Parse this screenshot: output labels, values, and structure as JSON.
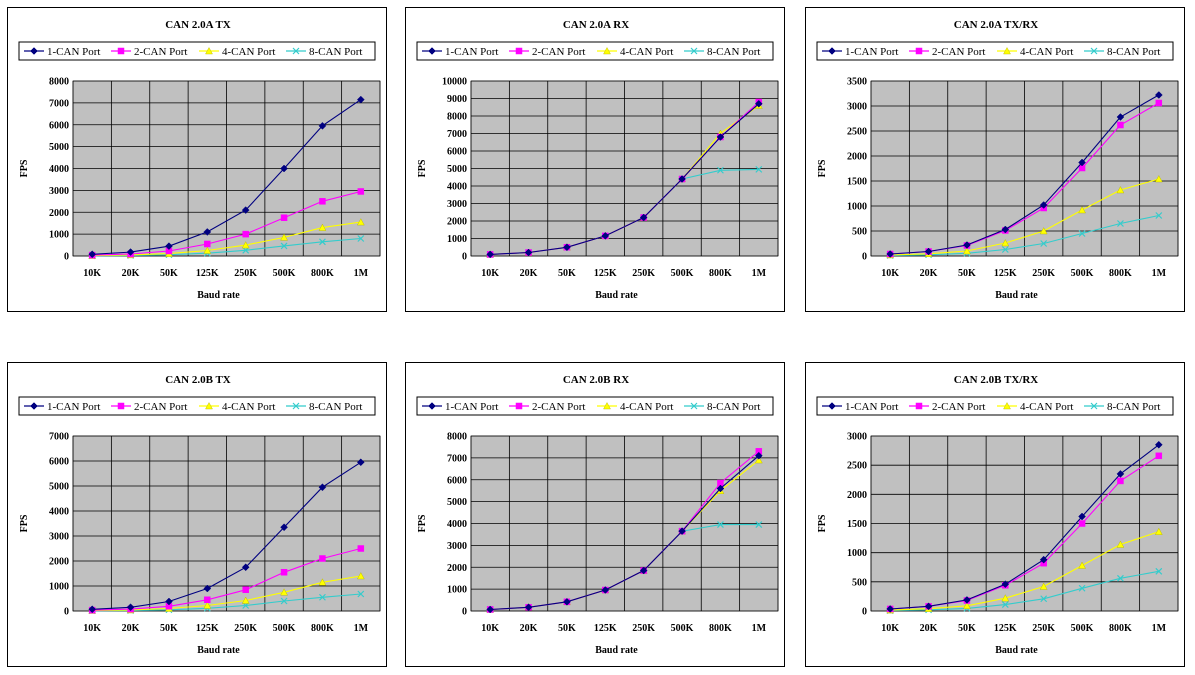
{
  "legend_labels": [
    "1-CAN Port",
    "2-CAN Port",
    "4-CAN Port",
    "8-CAN Port"
  ],
  "series_colors": [
    "#000080",
    "#ff00ff",
    "#ffff00",
    "#33cccc"
  ],
  "marker_shapes": [
    "diamond",
    "square",
    "triangle",
    "x"
  ],
  "chart_data": [
    {
      "type": "line",
      "title": "CAN 2.0A TX",
      "xlabel": "Baud rate",
      "ylabel": "FPS",
      "categories": [
        "10K",
        "20K",
        "50K",
        "125K",
        "250K",
        "500K",
        "800K",
        "1M"
      ],
      "ylim": [
        0,
        8000
      ],
      "yticks": [
        0,
        1000,
        2000,
        3000,
        4000,
        5000,
        6000,
        7000,
        8000
      ],
      "grid": true,
      "legend": "top",
      "series": [
        {
          "name": "1-CAN Port",
          "values": [
            80,
            180,
            450,
            1100,
            2100,
            4000,
            5950,
            7150
          ]
        },
        {
          "name": "2-CAN Port",
          "values": [
            40,
            90,
            230,
            550,
            1000,
            1750,
            2500,
            2950
          ]
        },
        {
          "name": "4-CAN Port",
          "values": [
            20,
            50,
            110,
            250,
            500,
            850,
            1300,
            1550
          ]
        },
        {
          "name": "8-CAN Port",
          "values": [
            10,
            25,
            60,
            130,
            260,
            460,
            650,
            800
          ]
        }
      ]
    },
    {
      "type": "line",
      "title": "CAN 2.0A RX",
      "xlabel": "Baud rate",
      "ylabel": "FPS",
      "categories": [
        "10K",
        "20K",
        "50K",
        "125K",
        "250K",
        "500K",
        "800K",
        "1M"
      ],
      "ylim": [
        0,
        10000
      ],
      "yticks": [
        0,
        1000,
        2000,
        3000,
        4000,
        5000,
        6000,
        7000,
        8000,
        9000,
        10000
      ],
      "grid": true,
      "legend": "top",
      "series": [
        {
          "name": "1-CAN Port",
          "values": [
            90,
            200,
            500,
            1150,
            2200,
            4400,
            6800,
            8700
          ]
        },
        {
          "name": "2-CAN Port",
          "values": [
            90,
            200,
            500,
            1150,
            2200,
            4400,
            6800,
            8800
          ]
        },
        {
          "name": "4-CAN Port",
          "values": [
            90,
            200,
            500,
            1150,
            2200,
            4400,
            7000,
            8600
          ]
        },
        {
          "name": "8-CAN Port",
          "values": [
            90,
            200,
            500,
            1150,
            2200,
            4400,
            4900,
            4950
          ]
        }
      ]
    },
    {
      "type": "line",
      "title": "CAN 2.0A TX/RX",
      "xlabel": "Baud rate",
      "ylabel": "FPS",
      "categories": [
        "10K",
        "20K",
        "50K",
        "125K",
        "250K",
        "500K",
        "800K",
        "1M"
      ],
      "ylim": [
        0,
        3500
      ],
      "yticks": [
        0,
        500,
        1000,
        1500,
        2000,
        2500,
        3000,
        3500
      ],
      "grid": true,
      "legend": "top",
      "series": [
        {
          "name": "1-CAN Port",
          "values": [
            40,
            90,
            220,
            530,
            1020,
            1870,
            2780,
            3220
          ]
        },
        {
          "name": "2-CAN Port",
          "values": [
            40,
            90,
            210,
            510,
            960,
            1760,
            2620,
            3060
          ]
        },
        {
          "name": "4-CAN Port",
          "values": [
            20,
            45,
            100,
            260,
            500,
            920,
            1320,
            1540
          ]
        },
        {
          "name": "8-CAN Port",
          "values": [
            10,
            25,
            55,
            130,
            250,
            450,
            650,
            810
          ]
        }
      ]
    },
    {
      "type": "line",
      "title": "CAN 2.0B TX",
      "xlabel": "Baud rate",
      "ylabel": "FPS",
      "categories": [
        "10K",
        "20K",
        "50K",
        "125K",
        "250K",
        "500K",
        "800K",
        "1M"
      ],
      "ylim": [
        0,
        7000
      ],
      "yticks": [
        0,
        1000,
        2000,
        3000,
        4000,
        5000,
        6000,
        7000
      ],
      "grid": true,
      "legend": "top",
      "series": [
        {
          "name": "1-CAN Port",
          "values": [
            70,
            150,
            380,
            900,
            1750,
            3350,
            4950,
            5950
          ]
        },
        {
          "name": "2-CAN Port",
          "values": [
            35,
            75,
            190,
            450,
            850,
            1550,
            2100,
            2500
          ]
        },
        {
          "name": "4-CAN Port",
          "values": [
            20,
            40,
            100,
            220,
            420,
            750,
            1150,
            1400
          ]
        },
        {
          "name": "8-CAN Port",
          "values": [
            10,
            20,
            50,
            110,
            220,
            400,
            550,
            680
          ]
        }
      ]
    },
    {
      "type": "line",
      "title": "CAN 2.0B RX",
      "xlabel": "Baud rate",
      "ylabel": "FPS",
      "categories": [
        "10K",
        "20K",
        "50K",
        "125K",
        "250K",
        "500K",
        "800K",
        "1M"
      ],
      "ylim": [
        0,
        8000
      ],
      "yticks": [
        0,
        1000,
        2000,
        3000,
        4000,
        5000,
        6000,
        7000,
        8000
      ],
      "grid": true,
      "legend": "top",
      "series": [
        {
          "name": "1-CAN Port",
          "values": [
            70,
            170,
            420,
            960,
            1850,
            3650,
            5600,
            7100
          ]
        },
        {
          "name": "2-CAN Port",
          "values": [
            70,
            170,
            420,
            960,
            1850,
            3650,
            5850,
            7300
          ]
        },
        {
          "name": "4-CAN Port",
          "values": [
            70,
            170,
            420,
            960,
            1850,
            3650,
            5500,
            6900
          ]
        },
        {
          "name": "8-CAN Port",
          "values": [
            70,
            170,
            420,
            960,
            1850,
            3650,
            3950,
            3950
          ]
        }
      ]
    },
    {
      "type": "line",
      "title": "CAN 2.0B TX/RX",
      "xlabel": "Baud rate",
      "ylabel": "FPS",
      "categories": [
        "10K",
        "20K",
        "50K",
        "125K",
        "250K",
        "500K",
        "800K",
        "1M"
      ],
      "ylim": [
        0,
        3000
      ],
      "yticks": [
        0,
        500,
        1000,
        1500,
        2000,
        2500,
        3000
      ],
      "grid": true,
      "legend": "top",
      "series": [
        {
          "name": "1-CAN Port",
          "values": [
            35,
            80,
            190,
            460,
            880,
            1620,
            2350,
            2850
          ]
        },
        {
          "name": "2-CAN Port",
          "values": [
            35,
            80,
            180,
            440,
            820,
            1500,
            2230,
            2660
          ]
        },
        {
          "name": "4-CAN Port",
          "values": [
            15,
            40,
            90,
            220,
            420,
            780,
            1140,
            1360
          ]
        },
        {
          "name": "8-CAN Port",
          "values": [
            8,
            20,
            45,
            110,
            210,
            390,
            560,
            680
          ]
        }
      ]
    }
  ]
}
